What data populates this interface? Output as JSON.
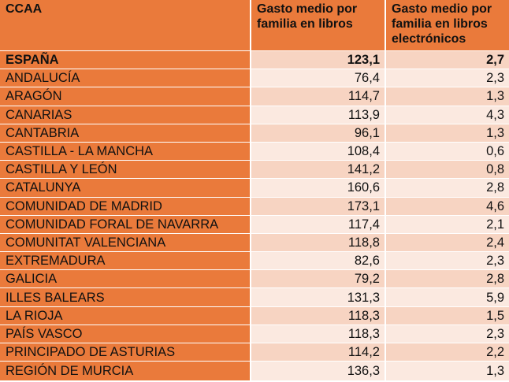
{
  "table": {
    "headers": [
      "CCAA",
      "Gasto medio por familia en libros",
      "Gasto medio por familia en libros electrónicos"
    ],
    "rows": [
      [
        "ESPAÑA",
        "123,1",
        "2,7"
      ],
      [
        "ANDALUCÍA",
        "76,4",
        "2,3"
      ],
      [
        "ARAGÓN",
        "114,7",
        "1,3"
      ],
      [
        "CANARIAS",
        "113,9",
        "4,3"
      ],
      [
        "CANTABRIA",
        "96,1",
        "1,3"
      ],
      [
        "CASTILLA - LA MANCHA",
        "108,4",
        "0,6"
      ],
      [
        "CASTILLA Y LEÓN",
        "141,2",
        "0,8"
      ],
      [
        "CATALUNYA",
        "160,6",
        "2,8"
      ],
      [
        "COMUNIDAD DE MADRID",
        "173,1",
        "4,6"
      ],
      [
        "COMUNIDAD FORAL DE NAVARRA",
        "117,4",
        "2,1"
      ],
      [
        "COMUNITAT VALENCIANA",
        "118,8",
        "2,4"
      ],
      [
        "EXTREMADURA",
        "82,6",
        "2,3"
      ],
      [
        "GALICIA",
        "79,2",
        "2,8"
      ],
      [
        "ILLES BALEARS",
        "131,3",
        "5,9"
      ],
      [
        "LA RIOJA",
        "118,3",
        "1,5"
      ],
      [
        "PAÍS VASCO",
        "118,3",
        "2,3"
      ],
      [
        "PRINCIPADO DE ASTURIAS",
        "114,2",
        "2,2"
      ],
      [
        "REGIÓN DE MURCIA",
        "136,3",
        "1,3"
      ]
    ]
  },
  "colors": {
    "header_orange": "#ea7a3b",
    "row_band_dark": "#f7d4c2",
    "row_band_light": "#fbe9e0"
  }
}
